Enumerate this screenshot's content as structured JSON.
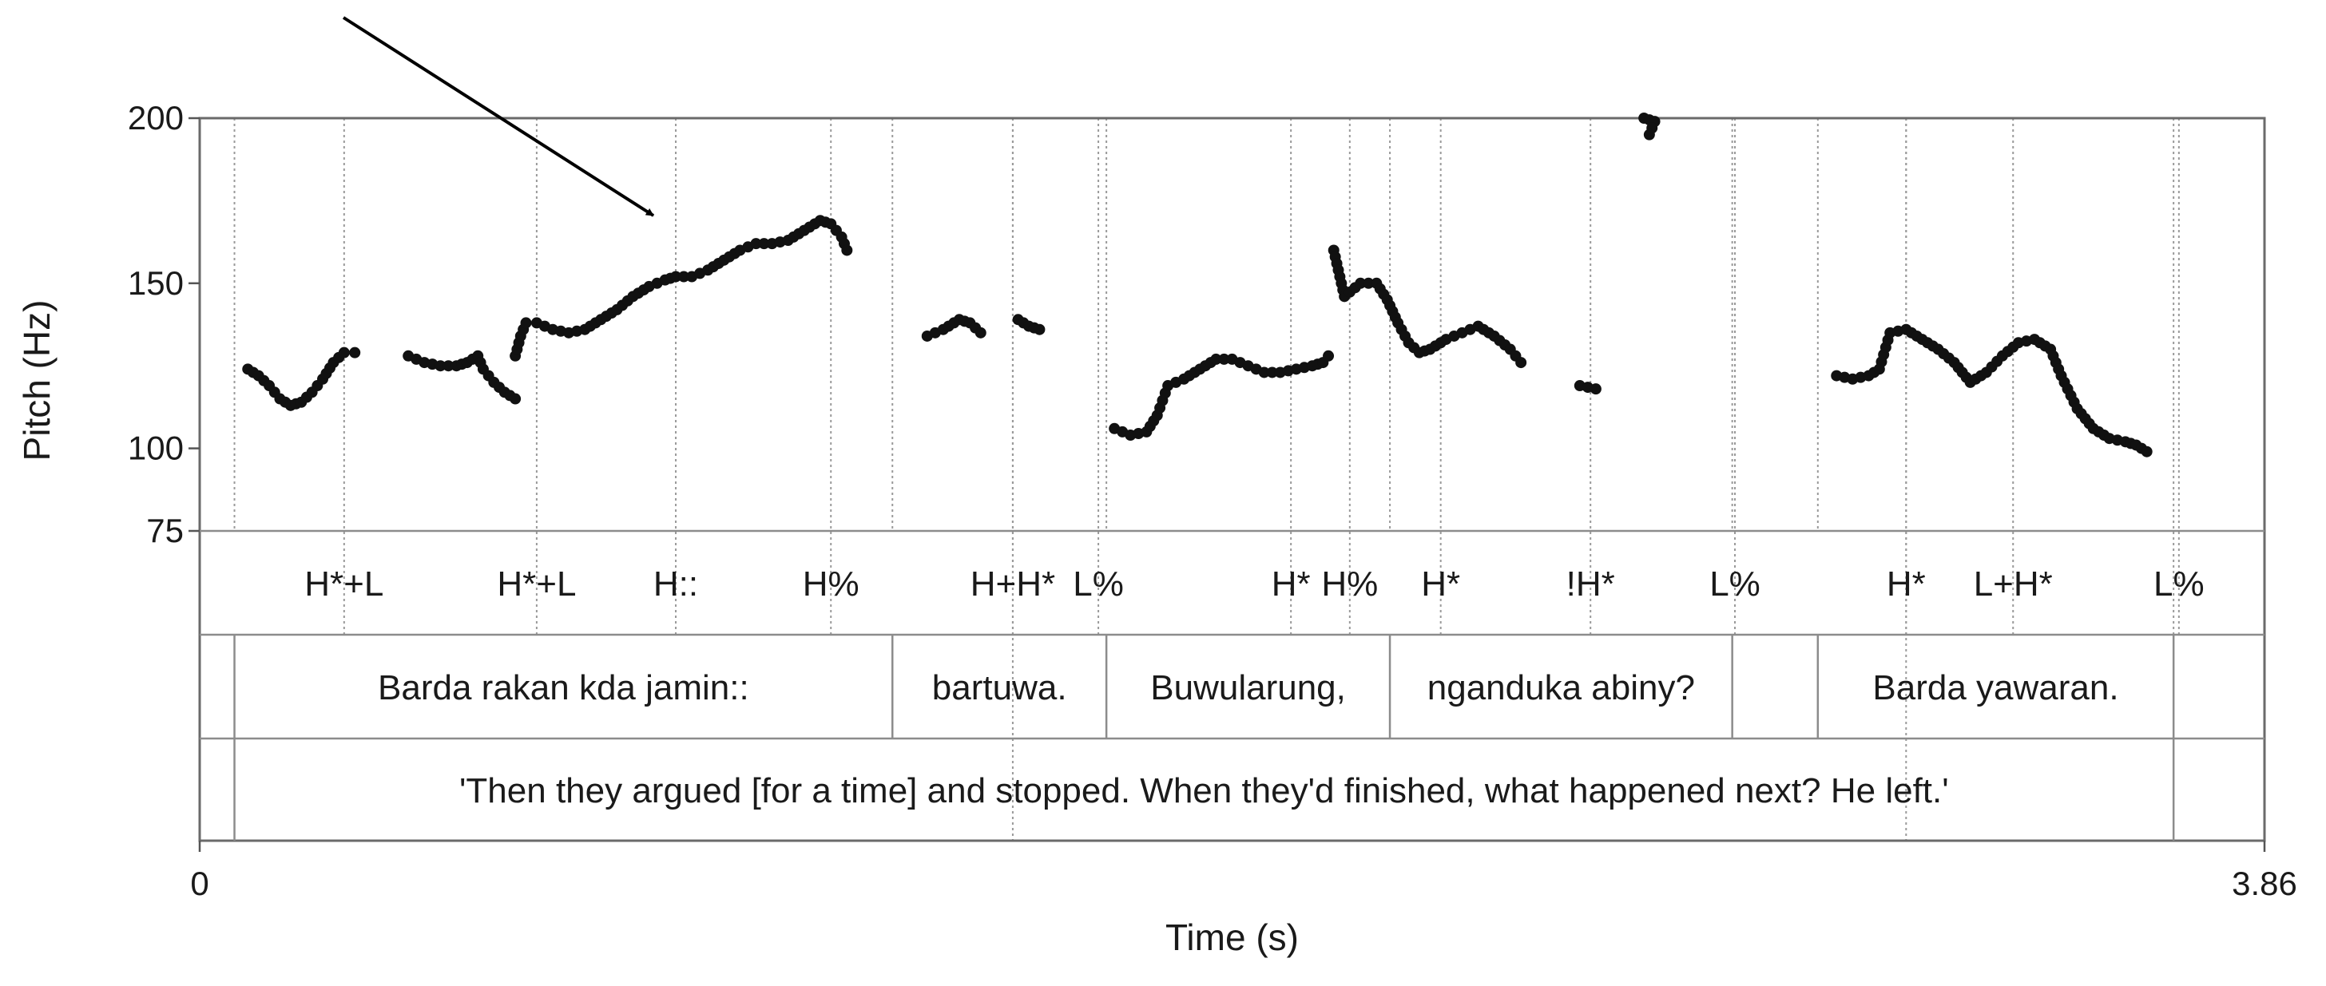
{
  "chart_data": {
    "type": "scatter",
    "xlabel": "Time (s)",
    "ylabel": "Pitch (Hz)",
    "xlim": [
      0,
      3.86
    ],
    "ylim": [
      75,
      200
    ],
    "x_ticks": [
      {
        "value": 0,
        "label": "0"
      },
      {
        "value": 3.86,
        "label": "3.86"
      }
    ],
    "y_ticks": [
      {
        "value": 200,
        "label": "200"
      },
      {
        "value": 150,
        "label": "150"
      },
      {
        "value": 100,
        "label": "100"
      },
      {
        "value": 75,
        "label": "75"
      }
    ],
    "tone_tier": [
      {
        "time": 0.27,
        "label": "H*+L"
      },
      {
        "time": 0.63,
        "label": "H*+L"
      },
      {
        "time": 0.89,
        "label": "H::"
      },
      {
        "time": 1.18,
        "label": "H%"
      },
      {
        "time": 1.52,
        "label": "H+H*"
      },
      {
        "time": 1.68,
        "label": "L%"
      },
      {
        "time": 2.04,
        "label": "H*"
      },
      {
        "time": 2.15,
        "label": "H%"
      },
      {
        "time": 2.32,
        "label": "H*"
      },
      {
        "time": 2.6,
        "label": "!H*"
      },
      {
        "time": 2.87,
        "label": "L%"
      },
      {
        "time": 3.19,
        "label": "H*"
      },
      {
        "time": 3.39,
        "label": "L+H*"
      },
      {
        "time": 3.7,
        "label": "L%"
      }
    ],
    "word_tier": [
      {
        "start": 0.065,
        "end": 1.295,
        "label": "Barda rakan kda jamin::"
      },
      {
        "start": 1.295,
        "end": 1.695,
        "label": "bartuwa."
      },
      {
        "start": 1.695,
        "end": 2.225,
        "label": "Buwularung,"
      },
      {
        "start": 2.225,
        "end": 2.865,
        "label": "nganduka abiny?"
      },
      {
        "start": 2.865,
        "end": 3.025,
        "label": ""
      },
      {
        "start": 3.025,
        "end": 3.69,
        "label": "Barda yawaran."
      }
    ],
    "gloss_tier": [
      {
        "start": 0.065,
        "end": 3.69,
        "label": "'Then they argued [for a time] and stopped. When they'd finished, what happened next? He left.'"
      }
    ],
    "gloss_boundaries": [
      0.065,
      3.69
    ],
    "extra_gridlines": [
      1.52,
      3.19
    ],
    "segments": [
      [
        [
          0.09,
          124
        ],
        [
          0.11,
          122
        ],
        [
          0.13,
          119
        ],
        [
          0.15,
          115
        ],
        [
          0.17,
          113
        ],
        [
          0.19,
          114
        ],
        [
          0.21,
          117
        ],
        [
          0.23,
          121
        ],
        [
          0.25,
          126
        ],
        [
          0.27,
          129
        ],
        [
          0.29,
          129
        ]
      ],
      [
        [
          0.39,
          128
        ],
        [
          0.42,
          126
        ],
        [
          0.45,
          125
        ],
        [
          0.48,
          125
        ],
        [
          0.5,
          126
        ],
        [
          0.52,
          128
        ],
        [
          0.53,
          124
        ],
        [
          0.55,
          120
        ],
        [
          0.57,
          117
        ],
        [
          0.59,
          115
        ]
      ],
      [
        [
          0.59,
          128
        ],
        [
          0.6,
          134
        ],
        [
          0.61,
          138
        ],
        [
          0.63,
          138
        ],
        [
          0.66,
          136
        ],
        [
          0.69,
          135
        ],
        [
          0.72,
          136
        ],
        [
          0.75,
          139
        ],
        [
          0.78,
          142
        ],
        [
          0.81,
          146
        ],
        [
          0.84,
          149
        ],
        [
          0.87,
          151
        ],
        [
          0.89,
          152
        ],
        [
          0.92,
          152
        ],
        [
          0.95,
          154
        ],
        [
          0.98,
          157
        ],
        [
          1.01,
          160
        ],
        [
          1.04,
          162
        ],
        [
          1.07,
          162
        ],
        [
          1.1,
          163
        ],
        [
          1.13,
          166
        ],
        [
          1.16,
          169
        ],
        [
          1.18,
          168
        ],
        [
          1.2,
          164
        ],
        [
          1.21,
          160
        ]
      ],
      [
        [
          1.36,
          134
        ],
        [
          1.39,
          136
        ],
        [
          1.42,
          139
        ],
        [
          1.44,
          138
        ],
        [
          1.46,
          135
        ]
      ],
      [
        [
          1.53,
          139
        ],
        [
          1.55,
          137
        ],
        [
          1.57,
          136
        ]
      ],
      [
        [
          1.71,
          106
        ],
        [
          1.74,
          104
        ],
        [
          1.77,
          105
        ],
        [
          1.79,
          110
        ],
        [
          1.81,
          119
        ],
        [
          1.84,
          121
        ],
        [
          1.87,
          124
        ],
        [
          1.9,
          127
        ],
        [
          1.93,
          127
        ],
        [
          1.96,
          125
        ],
        [
          1.99,
          123
        ],
        [
          2.02,
          123
        ],
        [
          2.05,
          124
        ],
        [
          2.08,
          125
        ],
        [
          2.1,
          126
        ],
        [
          2.11,
          128
        ]
      ],
      [
        [
          2.12,
          160
        ],
        [
          2.14,
          146
        ],
        [
          2.17,
          150
        ],
        [
          2.2,
          150
        ],
        [
          2.22,
          145
        ],
        [
          2.24,
          138
        ],
        [
          2.26,
          132
        ],
        [
          2.28,
          129
        ],
        [
          2.3,
          130
        ],
        [
          2.33,
          133
        ],
        [
          2.36,
          135
        ],
        [
          2.39,
          137
        ],
        [
          2.42,
          134
        ],
        [
          2.45,
          130
        ],
        [
          2.47,
          126
        ]
      ],
      [
        [
          2.58,
          119
        ],
        [
          2.61,
          118
        ]
      ],
      [
        [
          2.7,
          200
        ],
        [
          2.72,
          199
        ],
        [
          2.71,
          195
        ]
      ],
      [
        [
          3.06,
          122
        ],
        [
          3.09,
          121
        ],
        [
          3.12,
          122
        ],
        [
          3.14,
          124
        ],
        [
          3.16,
          135
        ],
        [
          3.19,
          136
        ],
        [
          3.22,
          133
        ],
        [
          3.25,
          130
        ],
        [
          3.28,
          126
        ],
        [
          3.31,
          120
        ],
        [
          3.34,
          123
        ],
        [
          3.37,
          128
        ],
        [
          3.4,
          132
        ],
        [
          3.43,
          133
        ],
        [
          3.46,
          130
        ],
        [
          3.48,
          122
        ],
        [
          3.51,
          112
        ],
        [
          3.54,
          106
        ],
        [
          3.57,
          103
        ],
        [
          3.6,
          102
        ],
        [
          3.62,
          101
        ],
        [
          3.64,
          99
        ]
      ]
    ]
  }
}
